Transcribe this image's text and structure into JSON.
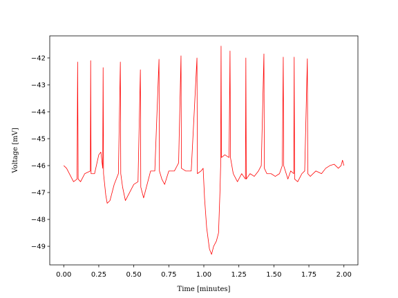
{
  "chart_data": {
    "type": "line",
    "xlabel": "Time [minutes]",
    "ylabel": "Voltage [mV]",
    "x": [
      0.0,
      0.02,
      0.05,
      0.07,
      0.095,
      0.099,
      0.103,
      0.12,
      0.15,
      0.19,
      0.192,
      0.195,
      0.22,
      0.25,
      0.265,
      0.278,
      0.281,
      0.284,
      0.3,
      0.31,
      0.33,
      0.36,
      0.39,
      0.404,
      0.407,
      0.42,
      0.44,
      0.47,
      0.5,
      0.53,
      0.547,
      0.55,
      0.57,
      0.59,
      0.62,
      0.65,
      0.68,
      0.683,
      0.7,
      0.72,
      0.75,
      0.79,
      0.82,
      0.837,
      0.84,
      0.87,
      0.91,
      0.951,
      0.954,
      0.98,
      0.995,
      1.005,
      1.02,
      1.04,
      1.055,
      1.07,
      1.09,
      1.105,
      1.115,
      1.12,
      1.123,
      1.126,
      1.15,
      1.18,
      1.187,
      1.19,
      1.21,
      1.24,
      1.27,
      1.297,
      1.3,
      1.303,
      1.33,
      1.36,
      1.39,
      1.41,
      1.429,
      1.432,
      1.45,
      1.48,
      1.51,
      1.54,
      1.56,
      1.567,
      1.57,
      1.6,
      1.62,
      1.642,
      1.645,
      1.648,
      1.67,
      1.7,
      1.72,
      1.739,
      1.742,
      1.76,
      1.8,
      1.84,
      1.87,
      1.9,
      1.93,
      1.96,
      1.98,
      1.99,
      2.0
    ],
    "series": [
      {
        "color": "#ff0000",
        "values": [
          -46.0,
          -46.1,
          -46.4,
          -46.6,
          -46.5,
          -42.15,
          -46.5,
          -46.6,
          -46.3,
          -46.2,
          -42.1,
          -46.3,
          -46.3,
          -45.6,
          -45.5,
          -46.1,
          -42.36,
          -46.3,
          -47.1,
          -47.4,
          -47.3,
          -46.7,
          -46.3,
          -42.15,
          -46.3,
          -46.8,
          -47.3,
          -47.0,
          -46.7,
          -46.6,
          -42.44,
          -46.8,
          -47.2,
          -46.8,
          -46.2,
          -46.2,
          -42.05,
          -46.2,
          -46.5,
          -46.7,
          -46.2,
          -46.2,
          -45.9,
          -41.92,
          -46.1,
          -46.2,
          -46.2,
          -42.0,
          -46.3,
          -46.2,
          -46.1,
          -47.2,
          -48.3,
          -49.1,
          -49.3,
          -49.0,
          -48.8,
          -48.5,
          -47.0,
          -46.0,
          -41.56,
          -45.7,
          -45.6,
          -45.7,
          -41.74,
          -45.7,
          -46.3,
          -46.6,
          -46.3,
          -46.5,
          -42.0,
          -46.5,
          -46.3,
          -46.4,
          -46.2,
          -46.0,
          -41.85,
          -46.1,
          -46.3,
          -46.3,
          -46.4,
          -46.3,
          -46.0,
          -41.97,
          -46.0,
          -46.5,
          -46.2,
          -46.3,
          -41.97,
          -46.5,
          -46.6,
          -46.3,
          -46.2,
          -42.03,
          -46.3,
          -46.4,
          -46.2,
          -46.3,
          -46.1,
          -46.0,
          -45.95,
          -46.1,
          -46.0,
          -45.8,
          -46.0
        ]
      }
    ],
    "xlim": [
      -0.1,
      2.1
    ],
    "ylim": [
      -49.69,
      -41.18
    ],
    "xticks": [
      {
        "value": 0,
        "label": "0.00"
      },
      {
        "value": 0.25,
        "label": "0.25"
      },
      {
        "value": 0.5,
        "label": "0.50"
      },
      {
        "value": 0.75,
        "label": "0.75"
      },
      {
        "value": 1,
        "label": "1.00"
      },
      {
        "value": 1.25,
        "label": "1.25"
      },
      {
        "value": 1.5,
        "label": "1.50"
      },
      {
        "value": 1.75,
        "label": "1.75"
      },
      {
        "value": 2,
        "label": "2.00"
      }
    ],
    "yticks": [
      {
        "value": -49,
        "label": "−49"
      },
      {
        "value": -48,
        "label": "−48"
      },
      {
        "value": -47,
        "label": "−47"
      },
      {
        "value": -46,
        "label": "−46"
      },
      {
        "value": -45,
        "label": "−45"
      },
      {
        "value": -44,
        "label": "−44"
      },
      {
        "value": -43,
        "label": "−43"
      },
      {
        "value": -42,
        "label": "−42"
      }
    ],
    "grid": false
  }
}
